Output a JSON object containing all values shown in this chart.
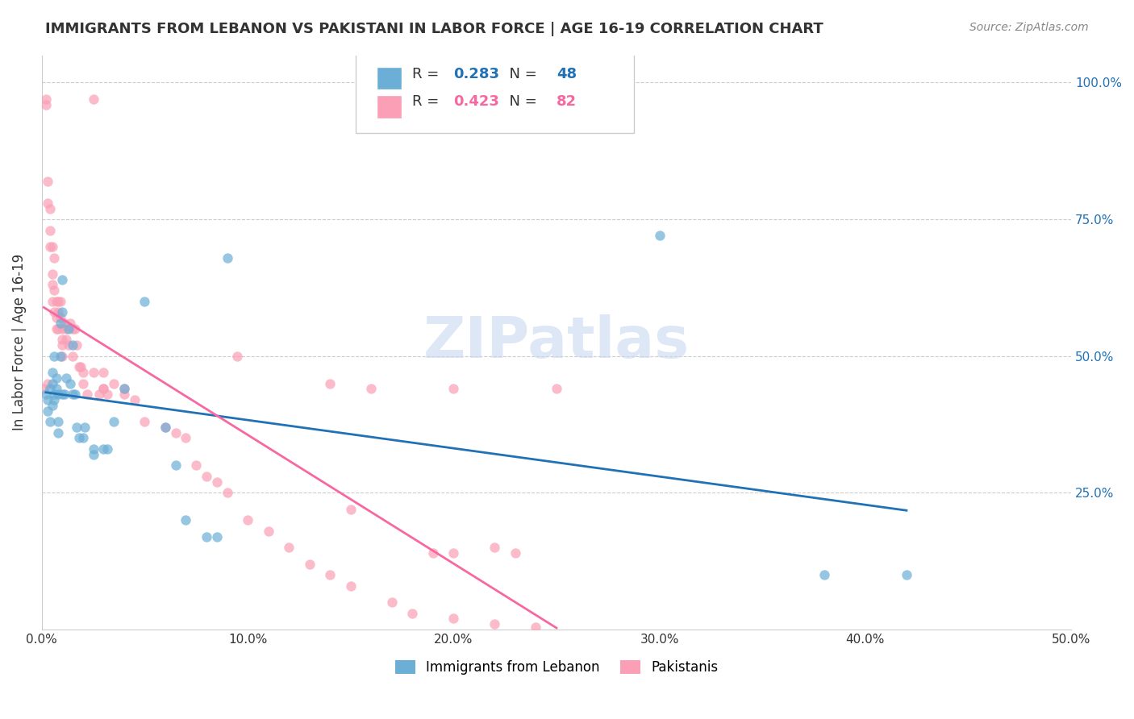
{
  "title": "IMMIGRANTS FROM LEBANON VS PAKISTANI IN LABOR FORCE | AGE 16-19 CORRELATION CHART",
  "source": "Source: ZipAtlas.com",
  "xlabel": "",
  "ylabel": "In Labor Force | Age 16-19",
  "xlim": [
    0.0,
    0.5
  ],
  "ylim": [
    0.0,
    1.05
  ],
  "xtick_labels": [
    "0.0%",
    "10.0%",
    "20.0%",
    "30.0%",
    "40.0%",
    "50.0%"
  ],
  "xtick_vals": [
    0.0,
    0.1,
    0.2,
    0.3,
    0.4,
    0.5
  ],
  "ytick_labels": [
    "25.0%",
    "50.0%",
    "75.0%",
    "100.0%"
  ],
  "ytick_vals": [
    0.25,
    0.5,
    0.75,
    1.0
  ],
  "legend_R_blue": "0.283",
  "legend_N_blue": "48",
  "legend_R_pink": "0.423",
  "legend_N_pink": "82",
  "blue_color": "#6baed6",
  "pink_color": "#fa9fb5",
  "blue_line_color": "#2171b5",
  "pink_line_color": "#f768a1",
  "blue_label": "Immigrants from Lebanon",
  "pink_label": "Pakistanis",
  "watermark": "ZIPatlas",
  "blue_x": [
    0.002,
    0.003,
    0.003,
    0.004,
    0.004,
    0.005,
    0.005,
    0.005,
    0.006,
    0.006,
    0.006,
    0.007,
    0.007,
    0.008,
    0.008,
    0.008,
    0.009,
    0.009,
    0.01,
    0.01,
    0.01,
    0.011,
    0.012,
    0.013,
    0.014,
    0.015,
    0.015,
    0.016,
    0.017,
    0.018,
    0.02,
    0.021,
    0.025,
    0.025,
    0.03,
    0.032,
    0.035,
    0.04,
    0.05,
    0.06,
    0.065,
    0.07,
    0.08,
    0.085,
    0.09,
    0.3,
    0.38,
    0.42
  ],
  "blue_y": [
    0.43,
    0.42,
    0.4,
    0.44,
    0.38,
    0.41,
    0.47,
    0.45,
    0.42,
    0.43,
    0.5,
    0.46,
    0.44,
    0.43,
    0.38,
    0.36,
    0.5,
    0.56,
    0.58,
    0.64,
    0.43,
    0.43,
    0.46,
    0.55,
    0.45,
    0.43,
    0.52,
    0.43,
    0.37,
    0.35,
    0.35,
    0.37,
    0.33,
    0.32,
    0.33,
    0.33,
    0.38,
    0.44,
    0.6,
    0.37,
    0.3,
    0.2,
    0.17,
    0.17,
    0.68,
    0.72,
    0.1,
    0.1
  ],
  "pink_x": [
    0.001,
    0.002,
    0.002,
    0.003,
    0.003,
    0.003,
    0.004,
    0.004,
    0.004,
    0.005,
    0.005,
    0.005,
    0.005,
    0.006,
    0.006,
    0.006,
    0.007,
    0.007,
    0.007,
    0.008,
    0.008,
    0.008,
    0.009,
    0.009,
    0.01,
    0.01,
    0.01,
    0.01,
    0.011,
    0.012,
    0.012,
    0.013,
    0.014,
    0.015,
    0.015,
    0.016,
    0.017,
    0.018,
    0.019,
    0.02,
    0.02,
    0.022,
    0.025,
    0.028,
    0.03,
    0.03,
    0.032,
    0.035,
    0.04,
    0.04,
    0.045,
    0.05,
    0.06,
    0.065,
    0.07,
    0.075,
    0.08,
    0.085,
    0.09,
    0.1,
    0.11,
    0.12,
    0.13,
    0.14,
    0.15,
    0.17,
    0.18,
    0.2,
    0.22,
    0.24,
    0.025,
    0.095,
    0.14,
    0.16,
    0.2,
    0.25,
    0.03,
    0.15,
    0.19,
    0.2,
    0.22,
    0.23
  ],
  "pink_y": [
    0.44,
    0.97,
    0.96,
    0.82,
    0.78,
    0.45,
    0.77,
    0.73,
    0.7,
    0.7,
    0.65,
    0.63,
    0.6,
    0.68,
    0.62,
    0.58,
    0.6,
    0.57,
    0.55,
    0.6,
    0.58,
    0.55,
    0.6,
    0.57,
    0.55,
    0.53,
    0.52,
    0.5,
    0.56,
    0.55,
    0.53,
    0.52,
    0.56,
    0.55,
    0.5,
    0.55,
    0.52,
    0.48,
    0.48,
    0.47,
    0.45,
    0.43,
    0.47,
    0.43,
    0.47,
    0.44,
    0.43,
    0.45,
    0.44,
    0.43,
    0.42,
    0.38,
    0.37,
    0.36,
    0.35,
    0.3,
    0.28,
    0.27,
    0.25,
    0.2,
    0.18,
    0.15,
    0.12,
    0.1,
    0.08,
    0.05,
    0.03,
    0.02,
    0.01,
    0.005,
    0.97,
    0.5,
    0.45,
    0.44,
    0.44,
    0.44,
    0.44,
    0.22,
    0.14,
    0.14,
    0.15,
    0.14
  ]
}
